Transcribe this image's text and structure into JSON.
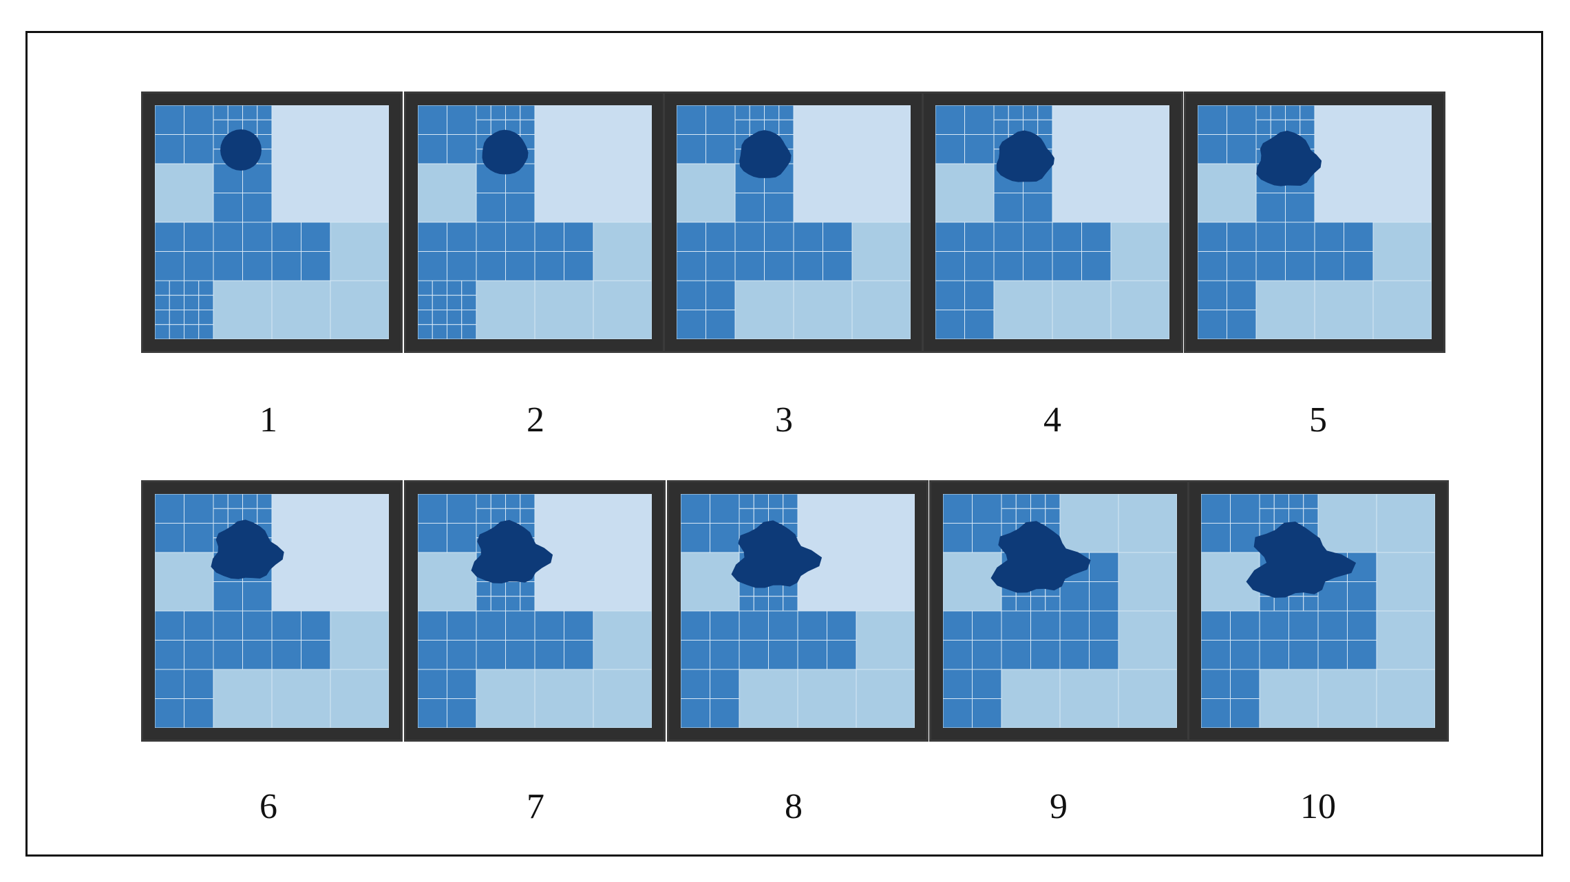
{
  "figure": {
    "panels": [
      {
        "label": "1"
      },
      {
        "label": "2"
      },
      {
        "label": "3"
      },
      {
        "label": "4"
      },
      {
        "label": "5"
      },
      {
        "label": "6"
      },
      {
        "label": "7"
      },
      {
        "label": "8"
      },
      {
        "label": "9"
      },
      {
        "label": "10"
      }
    ]
  },
  "colors": {
    "panel_border": "#2f2f2f",
    "lightest": "#c9ddf0",
    "level1": "#a9cce4",
    "level2": "#7db4dc",
    "level3": "#5a9dd0",
    "level4": "#3a7fc0",
    "blob": "#0d3a78",
    "grid_line": "#d8e8f5"
  }
}
